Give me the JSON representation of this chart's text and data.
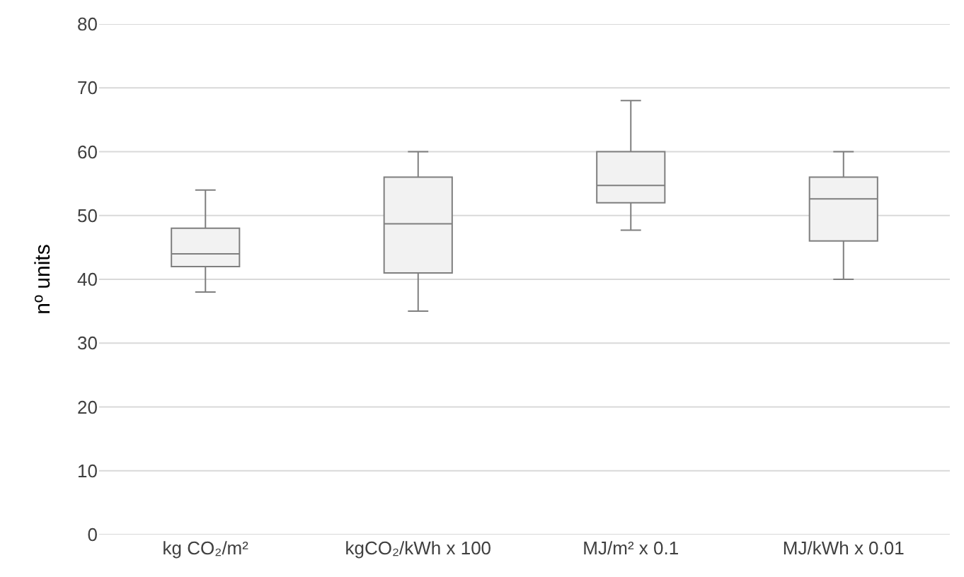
{
  "chart_data": {
    "type": "box",
    "ylabel": "nº units",
    "categories": [
      "kg CO₂/m²",
      "kgCO₂/kWh x 100",
      "MJ/m² x 0.1",
      "MJ/kWh x 0.01"
    ],
    "boxes": [
      {
        "low": 38,
        "q1": 42,
        "median": 44,
        "q3": 48,
        "high": 54
      },
      {
        "low": 35,
        "q1": 41,
        "median": 48.7,
        "q3": 56,
        "high": 60
      },
      {
        "low": 47.7,
        "q1": 52,
        "median": 54.7,
        "q3": 60,
        "high": 68
      },
      {
        "low": 40,
        "q1": 46,
        "median": 52.6,
        "q3": 56,
        "high": 60
      }
    ],
    "color": "#7f7f7f",
    "ylim": [
      0,
      80
    ],
    "yticks": [
      0,
      10,
      20,
      30,
      40,
      50,
      60,
      70,
      80
    ],
    "grid": "y",
    "legend": false
  }
}
